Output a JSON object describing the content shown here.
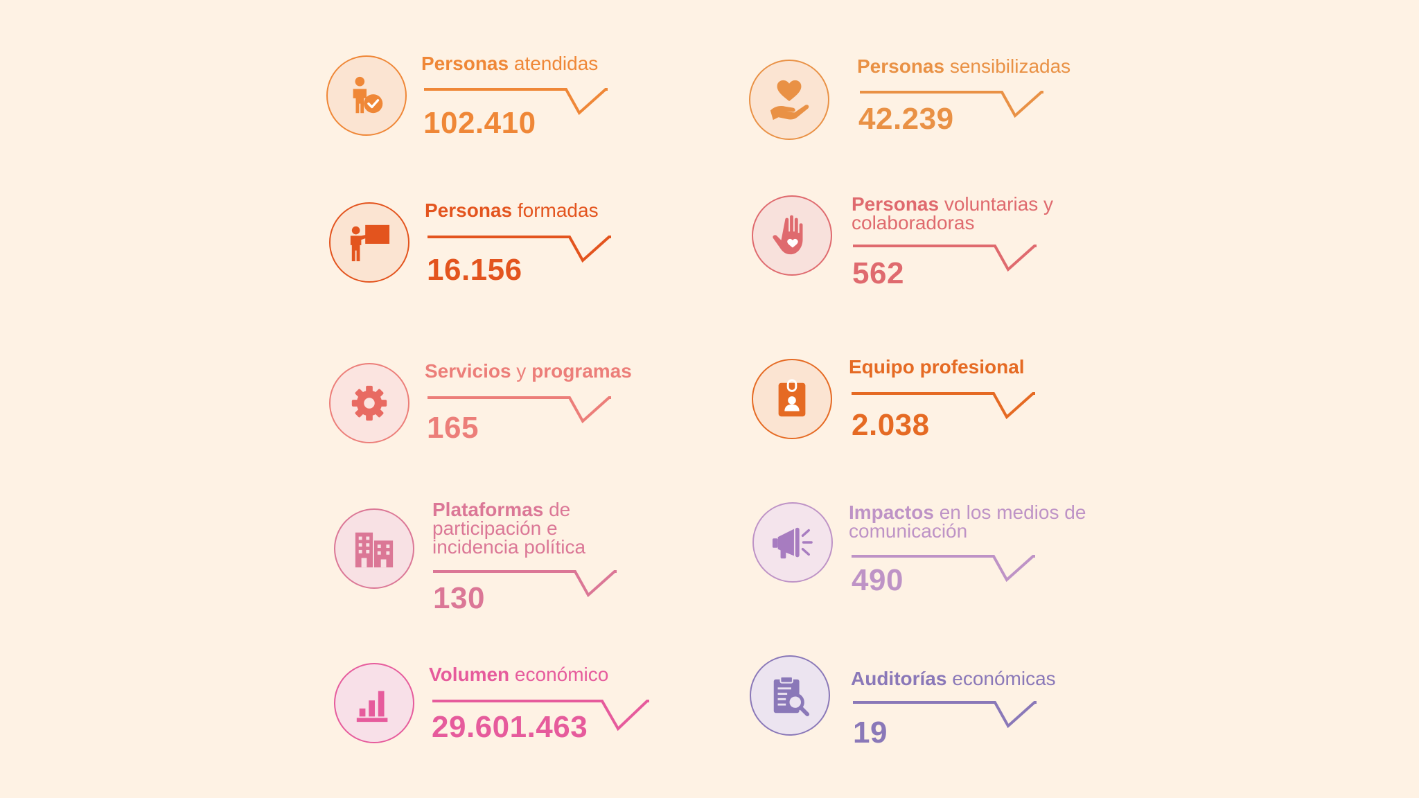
{
  "colors": {
    "background": "#fef2e4",
    "orange": "#ef8737",
    "orange_light": "#e99145",
    "red_orange": "#e3541e",
    "rose": "#df6a6e",
    "salmon": "#ec7e79",
    "orange_deep": "#e56a23",
    "pink": "#db7796",
    "lilac": "#be93c6",
    "magenta": "#e65b9c",
    "purple": "#8a78b8"
  },
  "stats": [
    {
      "id": "personas-atendidas",
      "bold": "Personas",
      "rest": " atendidas",
      "line2": "",
      "line3": "",
      "value": "102.410",
      "icon": "person-check-icon",
      "color": "#ef8737"
    },
    {
      "id": "personas-sensibilizadas",
      "bold": "Personas",
      "rest": " sensibilizadas",
      "line2": "",
      "line3": "",
      "value": "42.239",
      "icon": "heart-hand-icon",
      "color": "#e99145"
    },
    {
      "id": "personas-formadas",
      "bold": "Personas",
      "rest": " formadas",
      "line2": "",
      "line3": "",
      "value": "16.156",
      "icon": "teacher-board-icon",
      "color": "#e3541e"
    },
    {
      "id": "personas-voluntarias",
      "bold": "Personas",
      "rest": " voluntarias y",
      "line2": "colaboradoras",
      "line3": "",
      "value": "562",
      "icon": "raised-hand-heart-icon",
      "color": "#df6a6e"
    },
    {
      "id": "servicios-programas",
      "bold": "Servicios",
      "rest": " y ",
      "bold2": "programas",
      "line2": "",
      "line3": "",
      "value": "165",
      "icon": "gear-icon",
      "color": "#ec7e79"
    },
    {
      "id": "equipo-profesional",
      "bold": "Equipo profesional",
      "rest": "",
      "line2": "",
      "line3": "",
      "value": "2.038",
      "icon": "id-badge-icon",
      "color": "#e56a23"
    },
    {
      "id": "plataformas",
      "bold": "Plataformas",
      "rest": " de",
      "line2": "participación e",
      "line3": "incidencia política",
      "value": "130",
      "icon": "buildings-icon",
      "color": "#db7796"
    },
    {
      "id": "impactos-medios",
      "bold": "Impactos",
      "rest": " en los medios de",
      "line2": "comunicación",
      "line3": "",
      "value": "490",
      "icon": "megaphone-icon",
      "color": "#be93c6"
    },
    {
      "id": "volumen-economico",
      "bold": "Volumen",
      "rest": " económico",
      "line2": "",
      "line3": "",
      "value": "29.601.463",
      "icon": "bar-chart-icon",
      "color": "#e65b9c"
    },
    {
      "id": "auditorias-economicas",
      "bold": "Auditorías",
      "rest": " económicas",
      "line2": "",
      "line3": "",
      "value": "19",
      "icon": "clipboard-search-icon",
      "color": "#8a78b8"
    }
  ]
}
